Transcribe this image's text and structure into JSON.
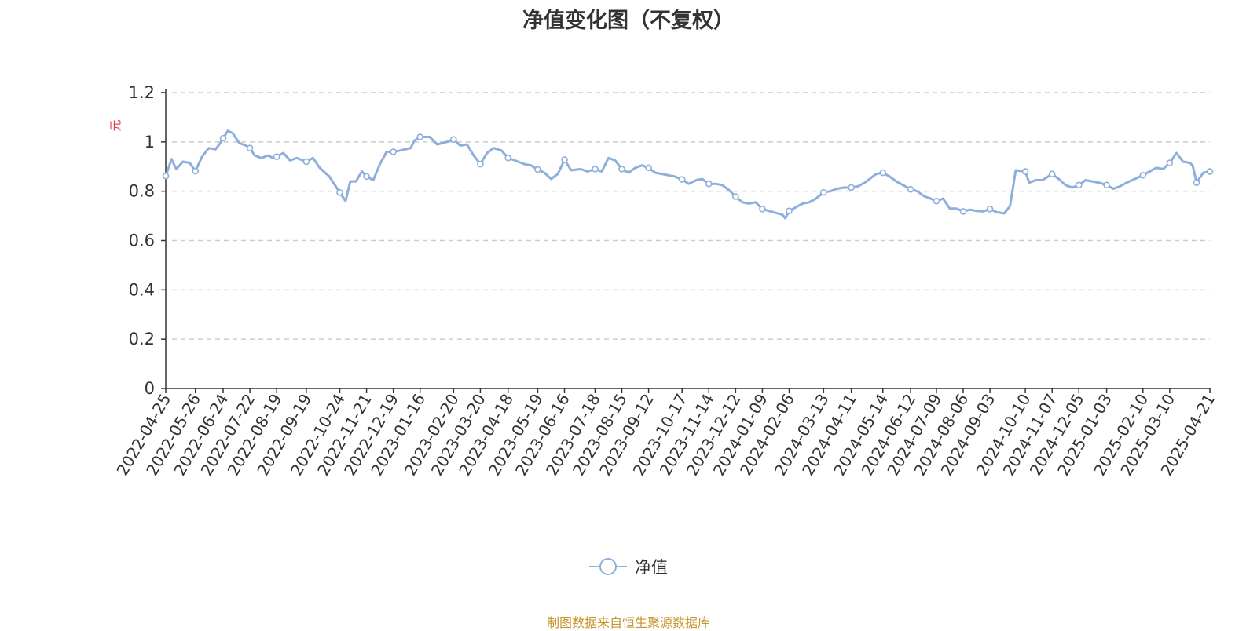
{
  "chart_data": {
    "type": "line",
    "title": "净值变化图（不复权）",
    "ylabel": "元",
    "ylim": [
      0,
      1.2
    ],
    "yticks": [
      "0",
      "0.2",
      "0.4",
      "0.6",
      "0.8",
      "1",
      "1.2"
    ],
    "grid": true,
    "legend_position": "bottom-center",
    "colors": {
      "line": "#8eaedb",
      "axis_title": "#e03a3a",
      "grid": "#cccccc",
      "axis": "#333333",
      "source": "#c8952c"
    },
    "x_tick_labels": [
      "2022-04-25",
      "2022-05-26",
      "2022-06-24",
      "2022-07-22",
      "2022-08-19",
      "2022-09-19",
      "2022-10-24",
      "2022-11-21",
      "2022-12-19",
      "2023-01-16",
      "2023-02-20",
      "2023-03-20",
      "2023-04-18",
      "2023-05-19",
      "2023-06-16",
      "2023-07-18",
      "2023-08-15",
      "2023-09-12",
      "2023-10-17",
      "2023-11-14",
      "2023-12-12",
      "2024-01-09",
      "2024-02-06",
      "2024-03-13",
      "2024-04-11",
      "2024-05-14",
      "2024-06-12",
      "2024-07-09",
      "2024-08-06",
      "2024-09-03",
      "2024-10-10",
      "2024-11-07",
      "2024-12-05",
      "2025-01-03",
      "2025-02-10",
      "2025-03-10",
      "2025-04-21"
    ],
    "series": [
      {
        "name": "净值",
        "points": [
          [
            "2022-04-25",
            0.862
          ],
          [
            "2022-05-01",
            0.93
          ],
          [
            "2022-05-06",
            0.89
          ],
          [
            "2022-05-13",
            0.92
          ],
          [
            "2022-05-20",
            0.915
          ],
          [
            "2022-05-26",
            0.882
          ],
          [
            "2022-06-02",
            0.94
          ],
          [
            "2022-06-09",
            0.975
          ],
          [
            "2022-06-16",
            0.97
          ],
          [
            "2022-06-20",
            0.99
          ],
          [
            "2022-06-24",
            1.015
          ],
          [
            "2022-06-29",
            1.045
          ],
          [
            "2022-07-04",
            1.035
          ],
          [
            "2022-07-11",
            0.995
          ],
          [
            "2022-07-18",
            0.985
          ],
          [
            "2022-07-22",
            0.975
          ],
          [
            "2022-07-27",
            0.945
          ],
          [
            "2022-08-03",
            0.935
          ],
          [
            "2022-08-10",
            0.945
          ],
          [
            "2022-08-15",
            0.935
          ],
          [
            "2022-08-19",
            0.94
          ],
          [
            "2022-08-26",
            0.955
          ],
          [
            "2022-09-02",
            0.925
          ],
          [
            "2022-09-09",
            0.935
          ],
          [
            "2022-09-19",
            0.92
          ],
          [
            "2022-09-26",
            0.935
          ],
          [
            "2022-10-03",
            0.895
          ],
          [
            "2022-10-13",
            0.86
          ],
          [
            "2022-10-24",
            0.795
          ],
          [
            "2022-10-30",
            0.76
          ],
          [
            "2022-11-04",
            0.84
          ],
          [
            "2022-11-10",
            0.84
          ],
          [
            "2022-11-16",
            0.88
          ],
          [
            "2022-11-21",
            0.86
          ],
          [
            "2022-11-28",
            0.845
          ],
          [
            "2022-12-05",
            0.91
          ],
          [
            "2022-12-12",
            0.96
          ],
          [
            "2022-12-19",
            0.96
          ],
          [
            "2022-12-26",
            0.965
          ],
          [
            "2023-01-06",
            0.975
          ],
          [
            "2023-01-10",
            1.005
          ],
          [
            "2023-01-16",
            1.02
          ],
          [
            "2023-01-26",
            1.02
          ],
          [
            "2023-02-03",
            0.99
          ],
          [
            "2023-02-13",
            1.0
          ],
          [
            "2023-02-20",
            1.01
          ],
          [
            "2023-02-27",
            0.985
          ],
          [
            "2023-03-06",
            0.99
          ],
          [
            "2023-03-13",
            0.945
          ],
          [
            "2023-03-20",
            0.91
          ],
          [
            "2023-03-27",
            0.955
          ],
          [
            "2023-04-03",
            0.975
          ],
          [
            "2023-04-11",
            0.965
          ],
          [
            "2023-04-18",
            0.935
          ],
          [
            "2023-04-25",
            0.925
          ],
          [
            "2023-05-05",
            0.91
          ],
          [
            "2023-05-12",
            0.905
          ],
          [
            "2023-05-19",
            0.888
          ],
          [
            "2023-05-26",
            0.875
          ],
          [
            "2023-06-02",
            0.85
          ],
          [
            "2023-06-09",
            0.87
          ],
          [
            "2023-06-16",
            0.928
          ],
          [
            "2023-06-23",
            0.885
          ],
          [
            "2023-07-03",
            0.89
          ],
          [
            "2023-07-10",
            0.88
          ],
          [
            "2023-07-18",
            0.89
          ],
          [
            "2023-07-25",
            0.88
          ],
          [
            "2023-08-01",
            0.935
          ],
          [
            "2023-08-08",
            0.925
          ],
          [
            "2023-08-15",
            0.89
          ],
          [
            "2023-08-22",
            0.875
          ],
          [
            "2023-08-29",
            0.895
          ],
          [
            "2023-09-05",
            0.905
          ],
          [
            "2023-09-12",
            0.895
          ],
          [
            "2023-09-19",
            0.875
          ],
          [
            "2023-09-26",
            0.87
          ],
          [
            "2023-10-09",
            0.86
          ],
          [
            "2023-10-17",
            0.848
          ],
          [
            "2023-10-24",
            0.83
          ],
          [
            "2023-11-01",
            0.845
          ],
          [
            "2023-11-07",
            0.85
          ],
          [
            "2023-11-14",
            0.83
          ],
          [
            "2023-11-21",
            0.83
          ],
          [
            "2023-11-28",
            0.825
          ],
          [
            "2023-12-05",
            0.805
          ],
          [
            "2023-12-12",
            0.778
          ],
          [
            "2023-12-19",
            0.755
          ],
          [
            "2023-12-26",
            0.75
          ],
          [
            "2024-01-02",
            0.755
          ],
          [
            "2024-01-09",
            0.728
          ],
          [
            "2024-01-16",
            0.72
          ],
          [
            "2024-01-23",
            0.712
          ],
          [
            "2024-01-30",
            0.705
          ],
          [
            "2024-02-02",
            0.69
          ],
          [
            "2024-02-06",
            0.72
          ],
          [
            "2024-02-20",
            0.75
          ],
          [
            "2024-02-27",
            0.755
          ],
          [
            "2024-03-05",
            0.77
          ],
          [
            "2024-03-13",
            0.795
          ],
          [
            "2024-03-20",
            0.8
          ],
          [
            "2024-03-27",
            0.81
          ],
          [
            "2024-04-03",
            0.815
          ],
          [
            "2024-04-11",
            0.815
          ],
          [
            "2024-04-18",
            0.82
          ],
          [
            "2024-04-25",
            0.835
          ],
          [
            "2024-05-07",
            0.87
          ],
          [
            "2024-05-14",
            0.875
          ],
          [
            "2024-05-21",
            0.86
          ],
          [
            "2024-05-28",
            0.84
          ],
          [
            "2024-06-04",
            0.825
          ],
          [
            "2024-06-12",
            0.808
          ],
          [
            "2024-06-19",
            0.8
          ],
          [
            "2024-06-26",
            0.78
          ],
          [
            "2024-07-03",
            0.77
          ],
          [
            "2024-07-09",
            0.76
          ],
          [
            "2024-07-16",
            0.77
          ],
          [
            "2024-07-23",
            0.73
          ],
          [
            "2024-07-30",
            0.73
          ],
          [
            "2024-08-06",
            0.718
          ],
          [
            "2024-08-13",
            0.725
          ],
          [
            "2024-08-20",
            0.72
          ],
          [
            "2024-08-27",
            0.718
          ],
          [
            "2024-09-03",
            0.728
          ],
          [
            "2024-09-10",
            0.715
          ],
          [
            "2024-09-18",
            0.71
          ],
          [
            "2024-09-24",
            0.74
          ],
          [
            "2024-09-30",
            0.885
          ],
          [
            "2024-10-10",
            0.88
          ],
          [
            "2024-10-14",
            0.835
          ],
          [
            "2024-10-21",
            0.845
          ],
          [
            "2024-10-28",
            0.845
          ],
          [
            "2024-11-07",
            0.87
          ],
          [
            "2024-11-14",
            0.85
          ],
          [
            "2024-11-21",
            0.825
          ],
          [
            "2024-11-28",
            0.815
          ],
          [
            "2024-12-05",
            0.825
          ],
          [
            "2024-12-12",
            0.845
          ],
          [
            "2024-12-19",
            0.84
          ],
          [
            "2024-12-26",
            0.835
          ],
          [
            "2025-01-03",
            0.825
          ],
          [
            "2025-01-10",
            0.81
          ],
          [
            "2025-01-17",
            0.82
          ],
          [
            "2025-01-24",
            0.835
          ],
          [
            "2025-02-10",
            0.865
          ],
          [
            "2025-02-17",
            0.88
          ],
          [
            "2025-02-24",
            0.895
          ],
          [
            "2025-03-03",
            0.89
          ],
          [
            "2025-03-10",
            0.915
          ],
          [
            "2025-03-17",
            0.955
          ],
          [
            "2025-03-24",
            0.92
          ],
          [
            "2025-03-31",
            0.915
          ],
          [
            "2025-04-03",
            0.905
          ],
          [
            "2025-04-07",
            0.835
          ],
          [
            "2025-04-14",
            0.875
          ],
          [
            "2025-04-21",
            0.88
          ]
        ],
        "markers": [
          [
            "2022-04-25",
            0.862
          ],
          [
            "2022-05-26",
            0.882
          ],
          [
            "2022-06-24",
            1.015
          ],
          [
            "2022-07-22",
            0.975
          ],
          [
            "2022-08-19",
            0.94
          ],
          [
            "2022-09-19",
            0.92
          ],
          [
            "2022-10-24",
            0.795
          ],
          [
            "2022-11-21",
            0.86
          ],
          [
            "2022-12-19",
            0.96
          ],
          [
            "2023-01-16",
            1.02
          ],
          [
            "2023-02-20",
            1.01
          ],
          [
            "2023-03-20",
            0.91
          ],
          [
            "2023-04-18",
            0.935
          ],
          [
            "2023-05-19",
            0.888
          ],
          [
            "2023-06-16",
            0.928
          ],
          [
            "2023-07-18",
            0.89
          ],
          [
            "2023-08-15",
            0.89
          ],
          [
            "2023-09-12",
            0.895
          ],
          [
            "2023-10-17",
            0.848
          ],
          [
            "2023-11-14",
            0.83
          ],
          [
            "2023-12-12",
            0.778
          ],
          [
            "2024-01-09",
            0.728
          ],
          [
            "2024-02-06",
            0.72
          ],
          [
            "2024-03-13",
            0.795
          ],
          [
            "2024-04-11",
            0.815
          ],
          [
            "2024-05-14",
            0.875
          ],
          [
            "2024-06-12",
            0.808
          ],
          [
            "2024-07-09",
            0.76
          ],
          [
            "2024-08-06",
            0.718
          ],
          [
            "2024-09-03",
            0.728
          ],
          [
            "2024-10-10",
            0.88
          ],
          [
            "2024-11-07",
            0.87
          ],
          [
            "2024-12-05",
            0.825
          ],
          [
            "2025-01-03",
            0.825
          ],
          [
            "2025-02-10",
            0.865
          ],
          [
            "2025-03-10",
            0.915
          ],
          [
            "2025-04-07",
            0.835
          ],
          [
            "2025-04-21",
            0.88
          ]
        ]
      }
    ],
    "source_note": "制图数据来自恒生聚源数据库"
  }
}
